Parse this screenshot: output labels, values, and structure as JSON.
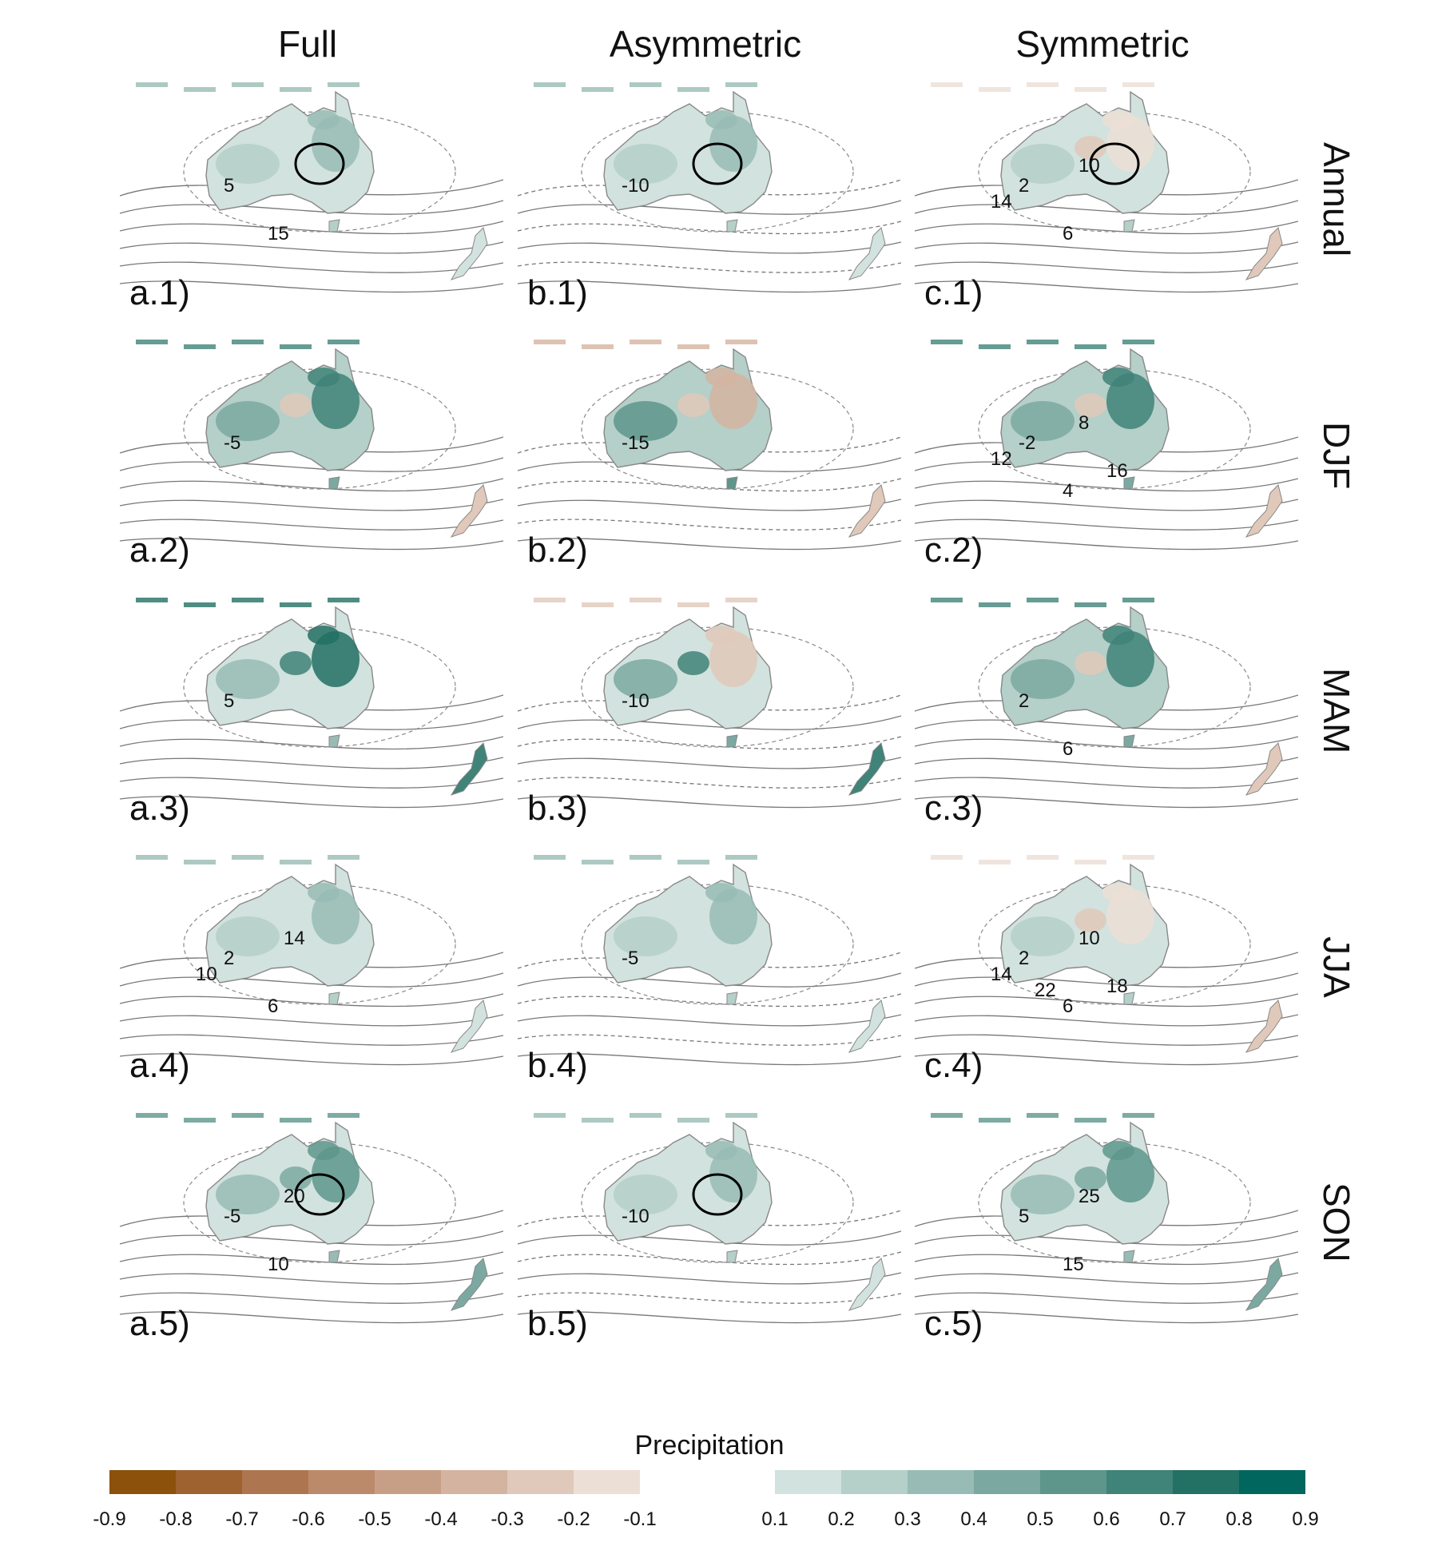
{
  "columns": [
    "Full",
    "Asymmetric",
    "Symmetric"
  ],
  "rows": [
    "Annual",
    "DJF",
    "MAM",
    "JJA",
    "SON"
  ],
  "panels": [
    [
      {
        "label": "a.1)",
        "contour_labels": [
          "5",
          "15"
        ],
        "fill": "wet-light",
        "stipple": true
      },
      {
        "label": "b.1)",
        "contour_labels": [
          "-10"
        ],
        "fill": "wet-light",
        "stipple": true
      },
      {
        "label": "c.1)",
        "contour_labels": [
          "2",
          "6",
          "10",
          "14"
        ],
        "fill": "mixed-light",
        "stipple": true
      }
    ],
    [
      {
        "label": "a.2)",
        "contour_labels": [
          "-5"
        ],
        "fill": "wet-strong",
        "stipple": false
      },
      {
        "label": "b.2)",
        "contour_labels": [
          "-15"
        ],
        "fill": "mixed-strong",
        "stipple": false
      },
      {
        "label": "c.2)",
        "contour_labels": [
          "-2",
          "4",
          "8",
          "12",
          "16"
        ],
        "fill": "wet-strong",
        "stipple": false
      }
    ],
    [
      {
        "label": "a.3)",
        "contour_labels": [
          "5"
        ],
        "fill": "wet-north",
        "stipple": false
      },
      {
        "label": "b.3)",
        "contour_labels": [
          "-10"
        ],
        "fill": "mixed-north",
        "stipple": false
      },
      {
        "label": "c.3)",
        "contour_labels": [
          "2",
          "6"
        ],
        "fill": "wet-strong",
        "stipple": false
      }
    ],
    [
      {
        "label": "a.4)",
        "contour_labels": [
          "2",
          "6",
          "14",
          "10"
        ],
        "fill": "wet-light",
        "stipple": false
      },
      {
        "label": "b.4)",
        "contour_labels": [
          "-5"
        ],
        "fill": "wet-light",
        "stipple": false
      },
      {
        "label": "c.4)",
        "contour_labels": [
          "2",
          "6",
          "10",
          "14",
          "18",
          "22"
        ],
        "fill": "mixed-light",
        "stipple": false
      }
    ],
    [
      {
        "label": "a.5)",
        "contour_labels": [
          "-5",
          "10",
          "20"
        ],
        "fill": "wet-east",
        "stipple": true
      },
      {
        "label": "b.5)",
        "contour_labels": [
          "-10"
        ],
        "fill": "wet-light",
        "stipple": true
      },
      {
        "label": "c.5)",
        "contour_labels": [
          "5",
          "15",
          "25"
        ],
        "fill": "wet-east",
        "stipple": false
      }
    ]
  ],
  "legend": {
    "title": "Precipitation",
    "negative": {
      "ticks": [
        "-0.9",
        "-0.8",
        "-0.7",
        "-0.6",
        "-0.5",
        "-0.4",
        "-0.3",
        "-0.2",
        "-0.1"
      ],
      "colors": [
        "#8c510a",
        "#9e6231",
        "#ad7650",
        "#bb8a6b",
        "#c79f86",
        "#d4b4a0",
        "#e0c9ba",
        "#ecdfd6"
      ]
    },
    "positive": {
      "ticks": [
        "0.1",
        "0.2",
        "0.3",
        "0.4",
        "0.5",
        "0.6",
        "0.7",
        "0.8",
        "0.9"
      ],
      "colors": [
        "#d2e2de",
        "#b5cfc9",
        "#98bcb5",
        "#7ba9a1",
        "#5e968c",
        "#408378",
        "#237064",
        "#01665e"
      ]
    }
  }
}
